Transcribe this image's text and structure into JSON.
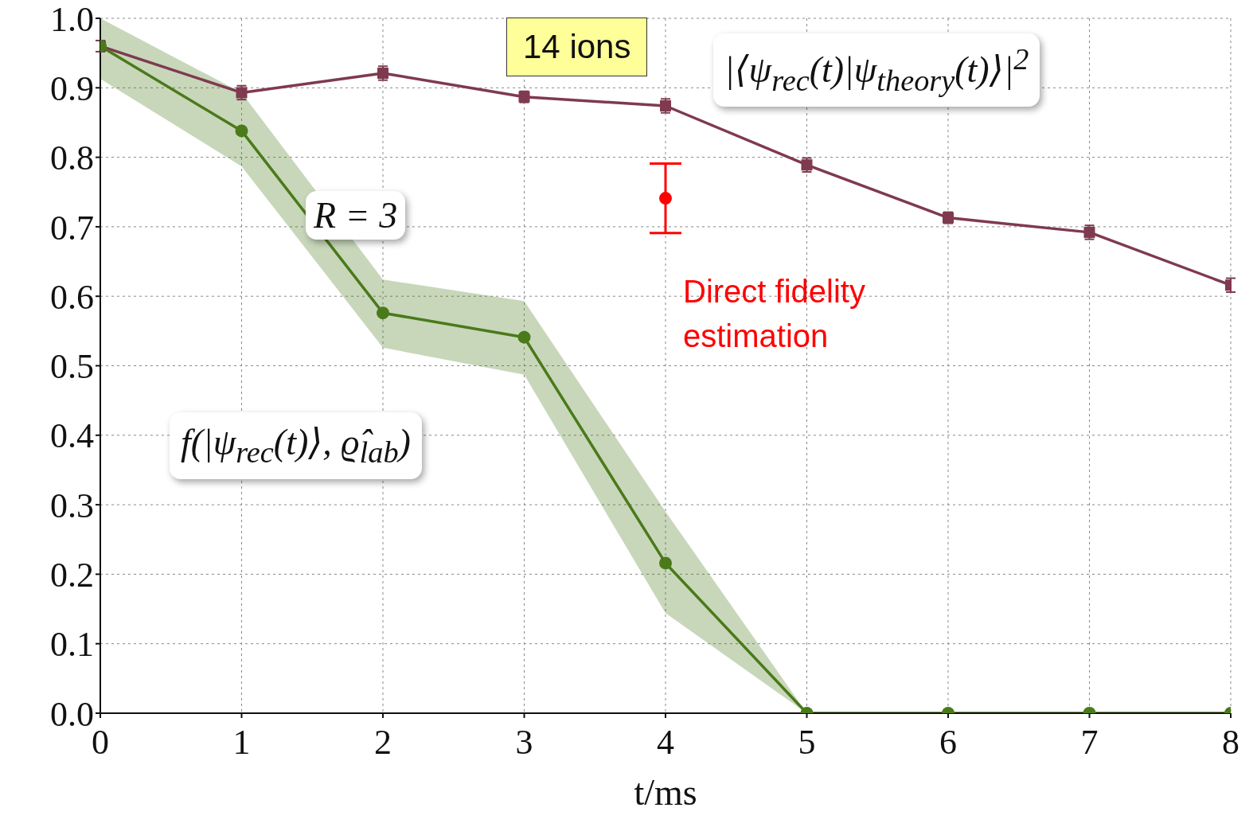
{
  "chart_data": {
    "type": "line",
    "xlabel": "t/ms",
    "x": [
      0,
      1,
      2,
      3,
      4,
      5,
      6,
      7,
      8
    ],
    "xlim": [
      0,
      8
    ],
    "xticks": [
      0,
      1,
      2,
      3,
      4,
      5,
      6,
      7,
      8
    ],
    "ylim": [
      0,
      1.0
    ],
    "yticks": [
      {
        "value": 0,
        "label": "0.0"
      },
      0.1,
      0.2,
      0.3,
      0.4,
      0.5,
      0.6,
      0.7,
      0.8,
      0.9,
      {
        "value": 1,
        "label": "1.0"
      }
    ],
    "grid": true,
    "line_style": "solid",
    "series": [
      {
        "name": "|⟨ψ$_{rec}$(t)|ψ$_{theory}$(t)⟩|$^{2}$",
        "color": "#7f3a4f",
        "marker": "square",
        "values": [
          0.96,
          0.893,
          0.921,
          0.887,
          0.874,
          0.789,
          0.713,
          0.692,
          0.616
        ],
        "errors": [
          0.008,
          0.01,
          0.01,
          0.008,
          0.01,
          0.01,
          0.008,
          0.01,
          0.01
        ]
      },
      {
        "name": "f(|ψ$_{rec}$(t)⟩, ϱ̂$_{lab}$)",
        "color": "#4a7a1a",
        "marker": "circle",
        "values": [
          0.96,
          0.838,
          0.576,
          0.541,
          0.216,
          0,
          0,
          0,
          0
        ],
        "lower": [
          0.913,
          0.787,
          0.526,
          0.487,
          0.144,
          0,
          0,
          0,
          0
        ],
        "upper": [
          1.0,
          0.893,
          0.624,
          0.593,
          0.29,
          0,
          0,
          0,
          0
        ]
      },
      {
        "name": "Direct fidelity estimation",
        "type": "scatter",
        "color": "#ff0000",
        "marker": "circle",
        "x": [
          4
        ],
        "values": [
          0.741
        ],
        "errors": [
          0.05
        ]
      }
    ],
    "annotations": [
      "14 ions",
      "R = 3"
    ]
  }
}
